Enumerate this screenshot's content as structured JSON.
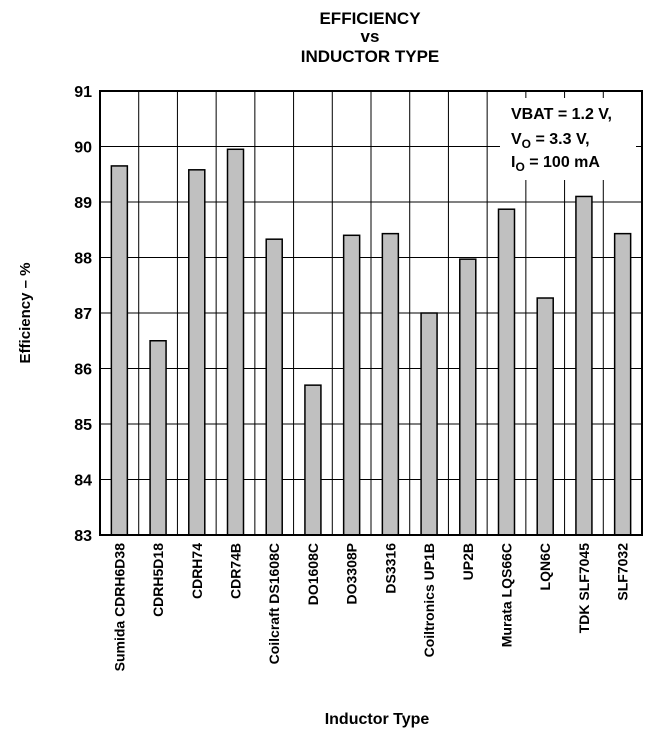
{
  "chart_data": {
    "type": "bar",
    "title_lines": [
      "EFFICIENCY",
      "vs",
      "INDUCTOR TYPE"
    ],
    "xlabel": "Inductor Type",
    "ylabel": "Efficiency – %",
    "ylim": [
      83,
      91
    ],
    "yticks": [
      83,
      84,
      85,
      86,
      87,
      88,
      89,
      90,
      91
    ],
    "grid": true,
    "categories": [
      "Sumida CDRH6D38",
      "CDRH5D18",
      "CDRH74",
      "CDR74B",
      "Coilcraft DS1608C",
      "DO1608C",
      "DO3308P",
      "DS3316",
      "Coiltronics UP1B",
      "UP2B",
      "Murata LQS66C",
      "LQN6C",
      "TDK SLF7045",
      "SLF7032"
    ],
    "values": [
      89.65,
      86.5,
      89.58,
      89.95,
      88.33,
      85.7,
      88.4,
      88.43,
      87.0,
      87.97,
      88.87,
      87.27,
      89.1,
      88.43
    ],
    "bar_color": "#c0c0c0",
    "annotation": {
      "line1": "VBAT = 1.2 V,",
      "line2_main": "V",
      "line2_sub": "O",
      "line2_rest": " = 3.3 V,",
      "line3_main": "I",
      "line3_sub": "O",
      "line3_rest": " = 100 mA"
    }
  }
}
